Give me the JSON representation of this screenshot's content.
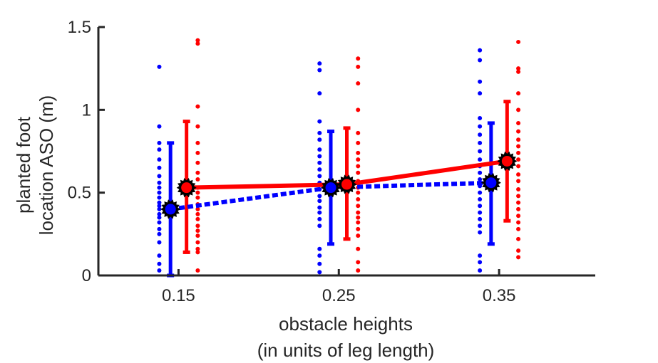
{
  "chart_data": {
    "type": "scatter",
    "title": "",
    "xlabel": [
      "obstacle heights",
      "(in units of leg length)"
    ],
    "ylabel": [
      "planted foot",
      "location ASO (m)"
    ],
    "categories": [
      "0.15",
      "0.25",
      "0.35"
    ],
    "x": [
      0.15,
      0.25,
      0.35
    ],
    "ylim": [
      0,
      1.5
    ],
    "yticks": [
      "0",
      "0.5",
      "1",
      "1.5"
    ],
    "ytick_values": [
      0,
      0.5,
      1,
      1.5
    ],
    "grid": false,
    "series": [
      {
        "color": "#0000ff",
        "line_style": "dashed",
        "x_offset": -0.005,
        "means": [
          0.4,
          0.53,
          0.56
        ],
        "error_low": [
          0.0,
          0.19,
          0.19
        ],
        "error_high": [
          0.8,
          0.87,
          0.92
        ],
        "points": [
          [
            1.26,
            0.9,
            0.8,
            0.76,
            0.7,
            0.65,
            0.6,
            0.56,
            0.53,
            0.5,
            0.47,
            0.44,
            0.42,
            0.4,
            0.37,
            0.35,
            0.32,
            0.28,
            0.25,
            0.2,
            0.12,
            0.07,
            0.03
          ],
          [
            1.28,
            1.24,
            1.1,
            0.93,
            0.86,
            0.82,
            0.76,
            0.72,
            0.68,
            0.64,
            0.6,
            0.56,
            0.52,
            0.48,
            0.45,
            0.41,
            0.38,
            0.34,
            0.3,
            0.16,
            0.12,
            0.07,
            0.02
          ],
          [
            1.36,
            1.3,
            1.17,
            1.1,
            0.95,
            0.9,
            0.85,
            0.8,
            0.75,
            0.7,
            0.66,
            0.62,
            0.58,
            0.54,
            0.5,
            0.46,
            0.42,
            0.38,
            0.34,
            0.3,
            0.26,
            0.12,
            0.08,
            0.03
          ]
        ]
      },
      {
        "color": "#ff0000",
        "line_style": "solid",
        "x_offset": 0.005,
        "means": [
          0.53,
          0.55,
          0.69
        ],
        "error_low": [
          0.14,
          0.22,
          0.33
        ],
        "error_high": [
          0.93,
          0.89,
          1.05
        ],
        "points": [
          [
            1.42,
            1.4,
            1.02,
            0.9,
            0.8,
            0.74,
            0.68,
            0.62,
            0.58,
            0.53,
            0.5,
            0.47,
            0.43,
            0.4,
            0.37,
            0.34,
            0.3,
            0.27,
            0.24,
            0.2,
            0.16,
            0.14,
            0.03
          ],
          [
            1.31,
            1.26,
            1.16,
            1.0,
            0.86,
            0.8,
            0.74,
            0.7,
            0.66,
            0.62,
            0.57,
            0.53,
            0.5,
            0.46,
            0.42,
            0.38,
            0.35,
            0.32,
            0.28,
            0.24,
            0.16,
            0.08,
            0.03
          ],
          [
            1.41,
            1.25,
            1.23,
            1.1,
            1.0,
            0.92,
            0.87,
            0.82,
            0.78,
            0.74,
            0.7,
            0.66,
            0.61,
            0.57,
            0.52,
            0.48,
            0.44,
            0.4,
            0.36,
            0.32,
            0.28,
            0.22,
            0.15,
            0.11
          ]
        ]
      }
    ]
  }
}
